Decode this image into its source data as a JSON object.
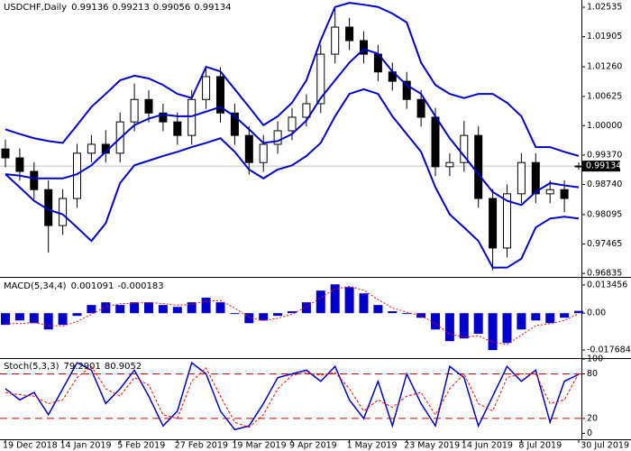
{
  "chart_data": [
    {
      "type": "candlestick",
      "title": "USDCHF,Daily",
      "categories": [
        "19 Dec 2018",
        null,
        null,
        null,
        "14 Jan 2019",
        null,
        null,
        null,
        "5 Feb 2019",
        null,
        null,
        null,
        "27 Feb 2019",
        null,
        null,
        null,
        "19 Mar 2019",
        null,
        null,
        null,
        "9 Apr 2019",
        null,
        null,
        null,
        "1 May 2019",
        null,
        null,
        null,
        "23 May 2019",
        null,
        null,
        null,
        "14 Jun 2019",
        null,
        null,
        null,
        "8 Jul 2019",
        null,
        null,
        null,
        "30 Jul 2019"
      ],
      "open": [
        0.995,
        0.9931,
        0.9902,
        0.9863,
        0.9786,
        0.9844,
        0.9941,
        0.996,
        0.9941,
        1.0008,
        1.0056,
        1.0027,
        1.0008,
        0.9979,
        1.0056,
        1.0105,
        1.0027,
        0.9979,
        0.9921,
        0.996,
        0.9989,
        1.0018,
        1.0047,
        1.0153,
        1.0211,
        1.0182,
        1.0153,
        1.0115,
        1.0095,
        1.0056,
        1.0018,
        0.9912,
        0.9921,
        0.9979,
        0.9844,
        0.9738,
        0.9854,
        0.9921,
        0.9854,
        0.9863,
        0.99136
      ],
      "high": [
        0.997,
        0.9951,
        0.9922,
        0.9883,
        0.9864,
        0.9961,
        0.998,
        0.999,
        1.0028,
        1.009,
        1.0076,
        1.0047,
        1.0028,
        1.0076,
        1.0125,
        1.0125,
        1.0047,
        0.9999,
        0.998,
        1.0009,
        1.0038,
        1.0067,
        1.0173,
        1.025,
        1.0231,
        1.0202,
        1.0173,
        1.0135,
        1.0115,
        1.0076,
        1.0038,
        0.9941,
        1.001,
        0.9999,
        0.9864,
        0.9874,
        0.9941,
        0.9941,
        0.9883,
        0.9883,
        0.99213
      ],
      "low": [
        0.9911,
        0.9882,
        0.9843,
        0.9728,
        0.9766,
        0.9824,
        0.9921,
        0.9921,
        0.9921,
        0.9988,
        1.0007,
        0.9988,
        0.9959,
        0.9959,
        1.0036,
        1.0007,
        0.9959,
        0.9895,
        0.9901,
        0.994,
        0.9969,
        0.9998,
        1.0027,
        1.0133,
        1.0162,
        1.0133,
        1.0095,
        1.0075,
        1.0036,
        0.9998,
        0.9892,
        0.9892,
        0.9901,
        0.9824,
        0.969,
        0.9718,
        0.9834,
        0.9834,
        0.9834,
        0.9815,
        0.99056
      ],
      "close": [
        0.9931,
        0.9902,
        0.9863,
        0.9786,
        0.9844,
        0.9941,
        0.996,
        0.9941,
        1.0008,
        1.0056,
        1.0027,
        1.0008,
        0.9979,
        1.0056,
        1.0105,
        1.0027,
        0.9979,
        0.9921,
        0.996,
        0.9989,
        1.0018,
        1.0047,
        1.0153,
        1.0211,
        1.0182,
        1.0153,
        1.0115,
        1.0095,
        1.0056,
        1.0018,
        0.9912,
        0.9921,
        0.9979,
        0.9844,
        0.9738,
        0.9854,
        0.9921,
        0.9854,
        0.9863,
        0.9844,
        0.99134
      ],
      "series": [
        {
          "color": "#0000cc",
          "values": [
            0.9992,
            0.9982,
            0.9973,
            0.9967,
            0.9963,
            1.0001,
            1.004,
            1.0068,
            1.0097,
            1.0107,
            1.0101,
            1.0087,
            1.0068,
            1.0059,
            1.0126,
            1.0116,
            1.0078,
            1.004,
            1.0001,
            1.002,
            1.0049,
            1.0097,
            1.0183,
            1.0254,
            1.0263,
            1.0259,
            1.0254,
            1.024,
            1.0221,
            1.0135,
            1.0087,
            1.0068,
            1.0059,
            1.0068,
            1.0068,
            1.0049,
            1.002,
            0.9954,
            0.9954,
            0.9944,
            0.9935
          ]
        },
        {
          "color": "#0000cc",
          "values": [
            0.9896,
            0.9893,
            0.9887,
            0.9887,
            0.9887,
            0.9896,
            0.9915,
            0.9944,
            0.9973,
            1.0001,
            1.0015,
            1.0024,
            1.002,
            1.002,
            1.003,
            1.004,
            1.002,
            0.9992,
            0.9963,
            0.9967,
            0.9982,
            1.0011,
            1.0059,
            1.0097,
            1.0135,
            1.0164,
            1.0154,
            1.0116,
            1.0087,
            1.0068,
            1.002,
            0.9973,
            0.9935,
            0.9896,
            0.9858,
            0.9839,
            0.983,
            0.9858,
            0.9877,
            0.9872,
            0.9868
          ]
        },
        {
          "color": "#0000cc",
          "values": [
            0.9896,
            0.9868,
            0.9839,
            0.982,
            0.981,
            0.9782,
            0.9753,
            0.9791,
            0.9877,
            0.9915,
            0.9925,
            0.9935,
            0.9944,
            0.9954,
            0.9963,
            0.9973,
            0.9944,
            0.9906,
            0.9887,
            0.9906,
            0.9915,
            0.9935,
            0.9963,
            1.002,
            1.0068,
            1.0078,
            1.0068,
            1.002,
            0.9982,
            0.9944,
            0.9868,
            0.981,
            0.9782,
            0.9753,
            0.9696,
            0.9696,
            0.9715,
            0.9782,
            0.9801,
            0.9805,
            0.9801
          ]
        }
      ],
      "ylim": [
        0.9678,
        1.0269
      ],
      "yticks": [
        1.02535,
        1.01905,
        {
          "value": 1.0126,
          "label": "1.01260"
        },
        1.00625,
        {
          "value": 1.0,
          "label": "1.00000"
        },
        {
          "value": 0.9937,
          "label": "0.99370"
        },
        {
          "value": 0.9874,
          "label": "0.98740"
        },
        0.98095,
        0.97465,
        0.96835
      ]
    },
    {
      "type": "macd",
      "title": "MACD(5,34,4)",
      "series": [
        {
          "color": "#0000cc",
          "style": "bar",
          "values": [
            -0.0056,
            -0.0035,
            -0.0048,
            -0.0078,
            -0.0056,
            -0.0013,
            0.0039,
            0.0052,
            0.0039,
            0.0052,
            0.0052,
            0.0039,
            0.003,
            0.0052,
            0.0074,
            0.0052,
            -0.0004,
            -0.0048,
            -0.0035,
            -0.0013,
            0.0009,
            0.0052,
            0.0108,
            0.0138,
            0.0125,
            0.0095,
            0.0039,
            0.0009,
            -0.0004,
            -0.0022,
            -0.0078,
            -0.0134,
            -0.0121,
            -0.0099,
            -0.0177,
            -0.0143,
            -0.0078,
            -0.0035,
            -0.0048,
            -0.0022,
            0.001091
          ]
        },
        {
          "color": "#ff0000",
          "style": "dotted",
          "values": [
            -0.005,
            -0.005,
            -0.0045,
            -0.0058,
            -0.0062,
            -0.004,
            -0.0005,
            0.003,
            0.0045,
            0.0048,
            0.005,
            0.0046,
            0.0038,
            0.0042,
            0.0058,
            0.006,
            0.0025,
            -0.002,
            -0.0035,
            -0.0025,
            -0.0005,
            0.003,
            0.0075,
            0.0115,
            0.0128,
            0.011,
            0.0065,
            0.0025,
            0.0005,
            -0.0012,
            -0.005,
            -0.01,
            -0.0115,
            -0.0108,
            -0.014,
            -0.015,
            -0.0105,
            -0.006,
            -0.005,
            -0.0035,
            -0.000183
          ]
        }
      ],
      "ylim": [
        -0.0211,
        0.0165
      ],
      "yticks": [
        0.013456,
        {
          "value": 0,
          "label": "0.00"
        },
        -0.017684
      ]
    },
    {
      "type": "line",
      "title": "Stoch(5,3,3)",
      "series": [
        {
          "color": "#0000cc",
          "style": "solid",
          "values": [
            60,
            45,
            55,
            25,
            60,
            95,
            85,
            40,
            60,
            85,
            50,
            10,
            30,
            95,
            80,
            30,
            5,
            10,
            40,
            75,
            80,
            85,
            70,
            90,
            45,
            20,
            70,
            10,
            80,
            40,
            10,
            90,
            75,
            10,
            50,
            90,
            70,
            85,
            15,
            70,
            79.2901
          ]
        },
        {
          "color": "#ff0000",
          "style": "dashed",
          "values": [
            55,
            52,
            50,
            40,
            45,
            75,
            90,
            60,
            50,
            75,
            65,
            25,
            20,
            70,
            88,
            50,
            15,
            8,
            25,
            60,
            78,
            82,
            78,
            82,
            60,
            30,
            45,
            35,
            50,
            55,
            25,
            60,
            80,
            40,
            30,
            75,
            80,
            80,
            40,
            45,
            80.9052
          ]
        }
      ],
      "levels": [
        80,
        20
      ],
      "ylim": [
        -8,
        100
      ],
      "yticks": [
        100,
        80,
        20,
        0
      ]
    }
  ]
}
